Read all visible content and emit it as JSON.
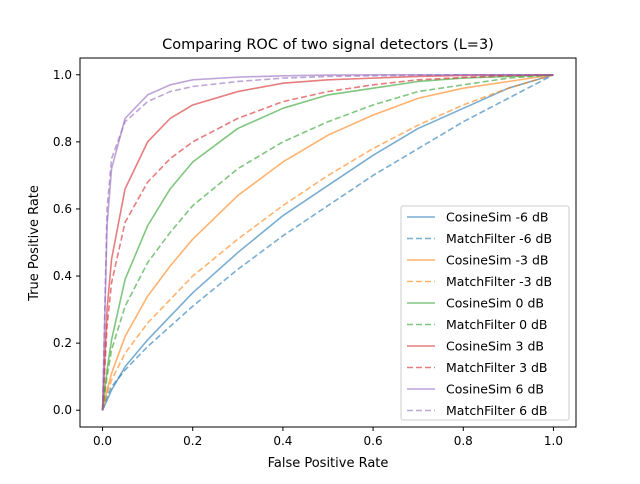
{
  "chart_data": {
    "type": "line",
    "title": "Comparing ROC of two signal detectors (L=3)",
    "xlabel": "False Positive Rate",
    "ylabel": "True Positive Rate",
    "xlim": [
      -0.05,
      1.05
    ],
    "ylim": [
      -0.05,
      1.05
    ],
    "xticks": [
      0.0,
      0.2,
      0.4,
      0.6,
      0.8,
      1.0
    ],
    "yticks": [
      0.0,
      0.2,
      0.4,
      0.6,
      0.8,
      1.0
    ],
    "xtick_labels": [
      "0.0",
      "0.2",
      "0.4",
      "0.6",
      "0.8",
      "1.0"
    ],
    "ytick_labels": [
      "0.0",
      "0.2",
      "0.4",
      "0.6",
      "0.8",
      "1.0"
    ],
    "grid": false,
    "legend_position": "lower-right",
    "x": [
      0.0,
      0.01,
      0.02,
      0.05,
      0.1,
      0.15,
      0.2,
      0.3,
      0.4,
      0.5,
      0.6,
      0.7,
      0.8,
      0.9,
      1.0
    ],
    "series": [
      {
        "name": "CosineSim -6 dB",
        "color": "#1f77b4",
        "dash": "solid",
        "values": [
          0.0,
          0.03,
          0.06,
          0.13,
          0.21,
          0.28,
          0.35,
          0.47,
          0.58,
          0.67,
          0.76,
          0.84,
          0.9,
          0.96,
          1.0
        ]
      },
      {
        "name": "MatchFilter -6 dB",
        "color": "#1f77b4",
        "dash": "dashed",
        "values": [
          0.0,
          0.04,
          0.07,
          0.12,
          0.19,
          0.25,
          0.31,
          0.42,
          0.52,
          0.61,
          0.7,
          0.78,
          0.86,
          0.93,
          1.0
        ]
      },
      {
        "name": "CosineSim -3 dB",
        "color": "#ff7f0e",
        "dash": "solid",
        "values": [
          0.0,
          0.06,
          0.11,
          0.22,
          0.34,
          0.43,
          0.51,
          0.64,
          0.74,
          0.82,
          0.88,
          0.93,
          0.96,
          0.98,
          1.0
        ]
      },
      {
        "name": "MatchFilter -3 dB",
        "color": "#ff7f0e",
        "dash": "dashed",
        "values": [
          0.0,
          0.05,
          0.09,
          0.17,
          0.26,
          0.33,
          0.4,
          0.51,
          0.61,
          0.7,
          0.78,
          0.85,
          0.91,
          0.96,
          1.0
        ]
      },
      {
        "name": "CosineSim 0 dB",
        "color": "#2ca02c",
        "dash": "solid",
        "values": [
          0.0,
          0.12,
          0.21,
          0.39,
          0.55,
          0.66,
          0.74,
          0.84,
          0.9,
          0.94,
          0.96,
          0.98,
          0.99,
          0.995,
          1.0
        ]
      },
      {
        "name": "MatchFilter 0 dB",
        "color": "#2ca02c",
        "dash": "dashed",
        "values": [
          0.0,
          0.1,
          0.18,
          0.31,
          0.44,
          0.53,
          0.61,
          0.72,
          0.8,
          0.86,
          0.91,
          0.95,
          0.97,
          0.99,
          1.0
        ]
      },
      {
        "name": "CosineSim 3 dB",
        "color": "#d62728",
        "dash": "solid",
        "values": [
          0.0,
          0.3,
          0.45,
          0.66,
          0.8,
          0.87,
          0.91,
          0.95,
          0.975,
          0.985,
          0.99,
          0.995,
          0.998,
          0.999,
          1.0
        ]
      },
      {
        "name": "MatchFilter 3 dB",
        "color": "#d62728",
        "dash": "dashed",
        "values": [
          0.0,
          0.25,
          0.38,
          0.56,
          0.68,
          0.75,
          0.8,
          0.87,
          0.92,
          0.95,
          0.97,
          0.985,
          0.992,
          0.997,
          1.0
        ]
      },
      {
        "name": "CosineSim 6 dB",
        "color": "#9467bd",
        "dash": "solid",
        "values": [
          0.0,
          0.55,
          0.72,
          0.87,
          0.94,
          0.97,
          0.985,
          0.993,
          0.997,
          0.999,
          1.0,
          1.0,
          1.0,
          1.0,
          1.0
        ]
      },
      {
        "name": "MatchFilter 6 dB",
        "color": "#9467bd",
        "dash": "dashed",
        "values": [
          0.0,
          0.6,
          0.75,
          0.86,
          0.92,
          0.95,
          0.965,
          0.98,
          0.99,
          0.995,
          0.997,
          0.999,
          1.0,
          1.0,
          1.0
        ]
      }
    ]
  }
}
